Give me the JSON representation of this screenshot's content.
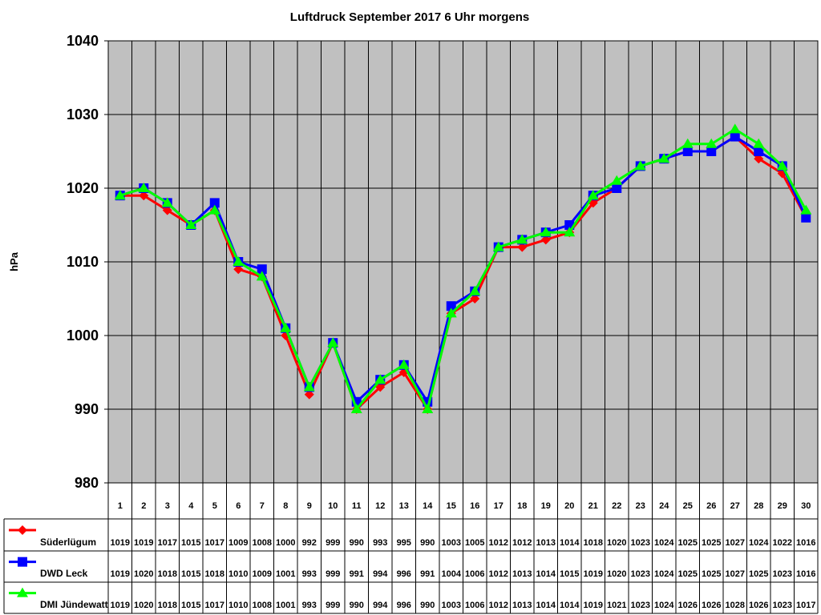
{
  "chart_data": {
    "type": "line",
    "title": "Luftdruck September 2017 6 Uhr morgens",
    "xlabel": "",
    "ylabel": "hPa",
    "ylim": [
      980,
      1040
    ],
    "yticks": [
      980,
      990,
      1000,
      1010,
      1020,
      1030,
      1040
    ],
    "grid": true,
    "legend_placement": "bottom-left (data table)",
    "plot_background": "#c0c0c0",
    "categories": [
      "1",
      "2",
      "3",
      "4",
      "5",
      "6",
      "7",
      "8",
      "9",
      "10",
      "11",
      "12",
      "13",
      "14",
      "15",
      "16",
      "17",
      "18",
      "19",
      "20",
      "21",
      "22",
      "23",
      "24",
      "25",
      "26",
      "27",
      "28",
      "29",
      "30"
    ],
    "series": [
      {
        "name": "Süderlügum",
        "color": "#ff0000",
        "marker": "diamond",
        "values": [
          1019,
          1019,
          1017,
          1015,
          1017,
          1009,
          1008,
          1000,
          992,
          999,
          990,
          993,
          995,
          990,
          1003,
          1005,
          1012,
          1012,
          1013,
          1014,
          1018,
          1020,
          1023,
          1024,
          1025,
          1025,
          1027,
          1024,
          1022,
          1016
        ]
      },
      {
        "name": "DWD Leck",
        "color": "#0000ff",
        "marker": "square",
        "values": [
          1019,
          1020,
          1018,
          1015,
          1018,
          1010,
          1009,
          1001,
          993,
          999,
          991,
          994,
          996,
          991,
          1004,
          1006,
          1012,
          1013,
          1014,
          1015,
          1019,
          1020,
          1023,
          1024,
          1025,
          1025,
          1027,
          1025,
          1023,
          1016
        ]
      },
      {
        "name": "DMI Jündewatt",
        "color": "#00ff00",
        "marker": "triangle",
        "values": [
          1019,
          1020,
          1018,
          1015,
          1017,
          1010,
          1008,
          1001,
          993,
          999,
          990,
          994,
          996,
          990,
          1003,
          1006,
          1012,
          1013,
          1014,
          1014,
          1019,
          1021,
          1023,
          1024,
          1026,
          1026,
          1028,
          1026,
          1023,
          1017
        ]
      }
    ]
  }
}
